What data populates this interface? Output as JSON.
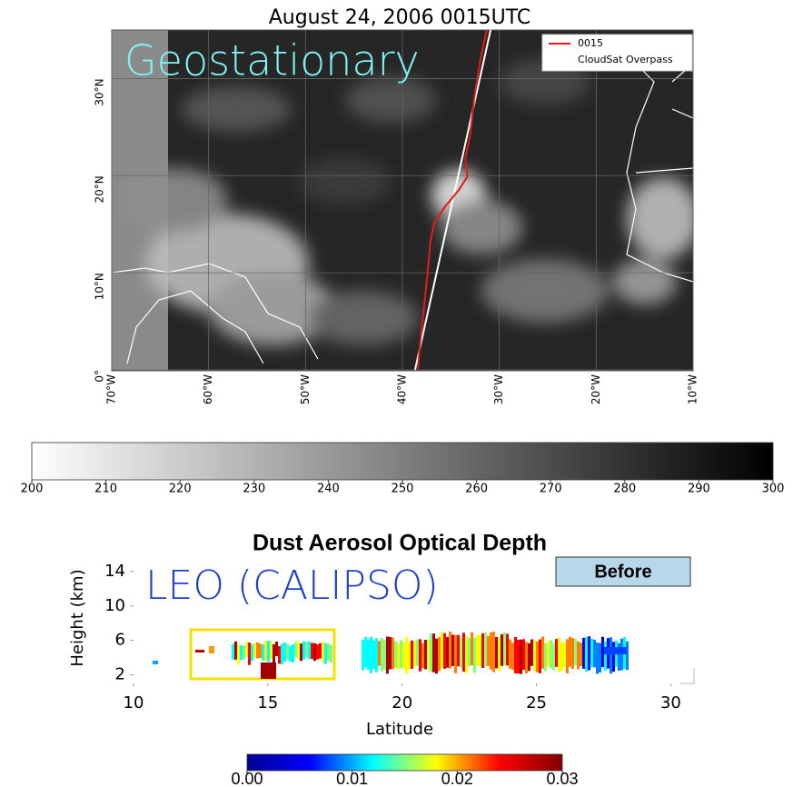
{
  "chart_data": [
    {
      "type": "map",
      "title": "August 24, 2006 0015UTC",
      "annotation": "Geostationary",
      "xlim": [
        -70,
        -10
      ],
      "ylim": [
        0,
        35
      ],
      "xticks": [
        {
          "value": -70,
          "label": "70°W"
        },
        {
          "value": -60,
          "label": "60°W"
        },
        {
          "value": -50,
          "label": "50°W"
        },
        {
          "value": -40,
          "label": "40°W"
        },
        {
          "value": -30,
          "label": "30°W"
        },
        {
          "value": -20,
          "label": "20°W"
        },
        {
          "value": -10,
          "label": "10°W"
        }
      ],
      "yticks": [
        {
          "value": 0,
          "label": "0°"
        },
        {
          "value": 10,
          "label": "10°N"
        },
        {
          "value": 20,
          "label": "20°N"
        },
        {
          "value": 30,
          "label": "30°N"
        }
      ],
      "grid": true,
      "series": [
        {
          "name": "0015",
          "color": "#e31a1c",
          "x": [
            -38.4,
            -38.2,
            -37.8,
            -37.4,
            -37.1,
            -36.7,
            -35.6,
            -34.2,
            -33.3,
            -33.5,
            -33.0,
            -32.6,
            -32.0,
            -31.3
          ],
          "y": [
            0.1,
            2.5,
            6.2,
            10.0,
            13.3,
            15.2,
            16.8,
            18.5,
            19.9,
            21.8,
            24.2,
            27.9,
            31.7,
            35.0
          ]
        },
        {
          "name": "CloudSat Overpass",
          "color": "#ffffff",
          "x": [
            -38.7,
            -30.9
          ],
          "y": [
            0,
            35
          ]
        }
      ]
    },
    {
      "type": "colorbar",
      "xlim": [
        200,
        300
      ],
      "xticks": [
        200,
        210,
        220,
        230,
        240,
        250,
        260,
        270,
        280,
        290,
        300
      ],
      "colors": [
        "#ffffff",
        "#000000"
      ]
    },
    {
      "type": "curtain",
      "title": "Dust Aerosol Optical Depth",
      "annotation": "LEO (CALIPSO)",
      "label_box": "Before",
      "xlabel": "Latitude",
      "ylabel": "Height (km)",
      "xlim": [
        10,
        31
      ],
      "ylim": [
        1,
        16
      ],
      "xticks": [
        10,
        15,
        20,
        25,
        30
      ],
      "yticks": [
        2,
        6,
        10,
        14
      ]
    },
    {
      "type": "colorbar",
      "xlim": [
        0,
        0.03
      ],
      "xticks": [
        {
          "value": 0,
          "label": "0.00"
        },
        0.01,
        0.02,
        0.03
      ],
      "colors": [
        "#00008f",
        "#0000ff",
        "#00ffff",
        "#ffff00",
        "#ff0000",
        "#800000"
      ]
    }
  ]
}
